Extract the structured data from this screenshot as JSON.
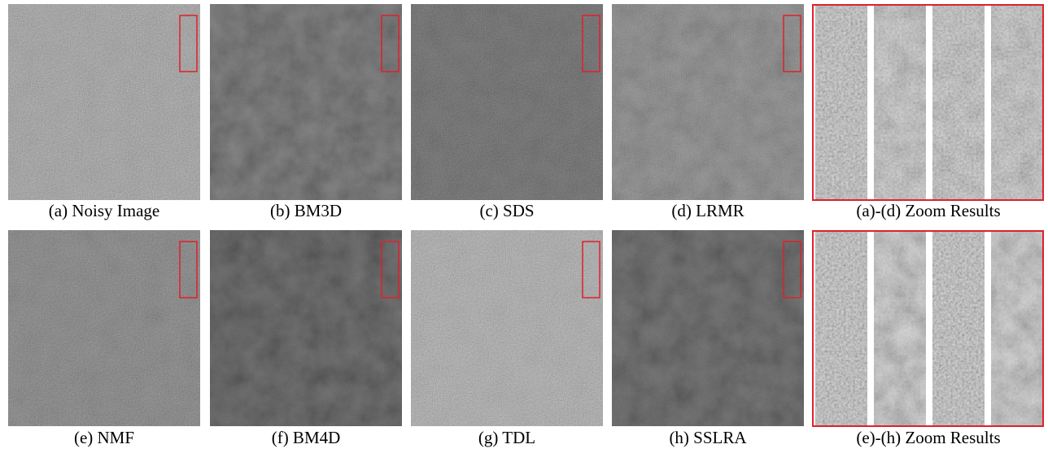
{
  "rows": [
    {
      "panels": [
        {
          "caption": "(a) Noisy Image"
        },
        {
          "caption": "(b) BM3D"
        },
        {
          "caption": "(c) SDS"
        },
        {
          "caption": "(d) LRMR"
        },
        {
          "caption": "(a)-(d) Zoom Results"
        }
      ]
    },
    {
      "panels": [
        {
          "caption": "(e) NMF"
        },
        {
          "caption": "(f) BM4D"
        },
        {
          "caption": "(g) TDL"
        },
        {
          "caption": "(h) SSLRA"
        },
        {
          "caption": "(e)-(h) Zoom Results"
        }
      ]
    }
  ]
}
